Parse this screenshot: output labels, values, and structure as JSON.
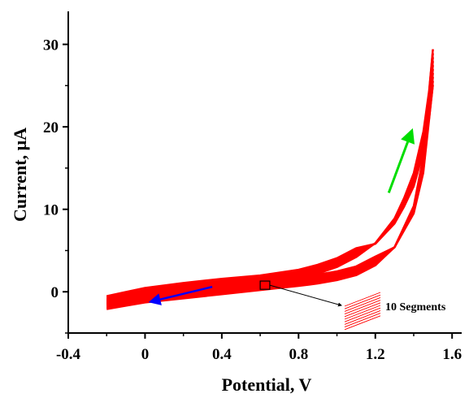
{
  "chart_data": {
    "type": "line",
    "title": "",
    "xlabel": "Potential, V",
    "ylabel": "Current, μA",
    "xlim": [
      -0.4,
      1.65
    ],
    "ylim": [
      -5,
      34
    ],
    "xticks": [
      "-0.4",
      "0",
      "0.4",
      "0.8",
      "1.2",
      "1.6"
    ],
    "xtick_values": [
      -0.4,
      0,
      0.4,
      0.8,
      1.2,
      1.6
    ],
    "yticks": [
      "0",
      "10",
      "20",
      "30"
    ],
    "ytick_values": [
      0,
      10,
      20,
      30
    ],
    "grid": false,
    "legend": "none",
    "series_color": "#ff0000",
    "segments": 10,
    "forward_scan": {
      "x": [
        -0.2,
        -0.1,
        0.0,
        0.2,
        0.4,
        0.6,
        0.8,
        0.9,
        1.0,
        1.1,
        1.2,
        1.3,
        1.35,
        1.4,
        1.45,
        1.48,
        1.5
      ],
      "y": [
        -1.0,
        -0.5,
        0.0,
        0.6,
        1.1,
        1.5,
        2.2,
        2.8,
        3.6,
        4.8,
        6.5,
        9.5,
        12.0,
        15.0,
        20.0,
        25.0,
        30.0
      ]
    },
    "reverse_scan": {
      "x": [
        1.5,
        1.45,
        1.4,
        1.3,
        1.2,
        1.1,
        1.0,
        0.9,
        0.8,
        0.6,
        0.4,
        0.2,
        0.0,
        -0.1,
        -0.2
      ],
      "y": [
        30.0,
        17.0,
        11.0,
        6.0,
        3.8,
        2.6,
        2.0,
        1.6,
        1.3,
        0.8,
        0.3,
        -0.2,
        -0.7,
        -1.1,
        -1.5
      ]
    },
    "annotations": [
      {
        "text": "10 Segments",
        "box_x": [
          0.6,
          0.65
        ],
        "box_y": [
          0.3,
          1.3
        ]
      }
    ],
    "arrows": [
      {
        "color": "#00dd00",
        "direction": "increasing-potential",
        "from": [
          1.27,
          12
        ],
        "to": [
          1.39,
          19.5
        ]
      },
      {
        "color": "#0000ff",
        "direction": "decreasing-potential",
        "from": [
          0.35,
          0.6
        ],
        "to": [
          0.03,
          -1.2
        ]
      }
    ]
  }
}
